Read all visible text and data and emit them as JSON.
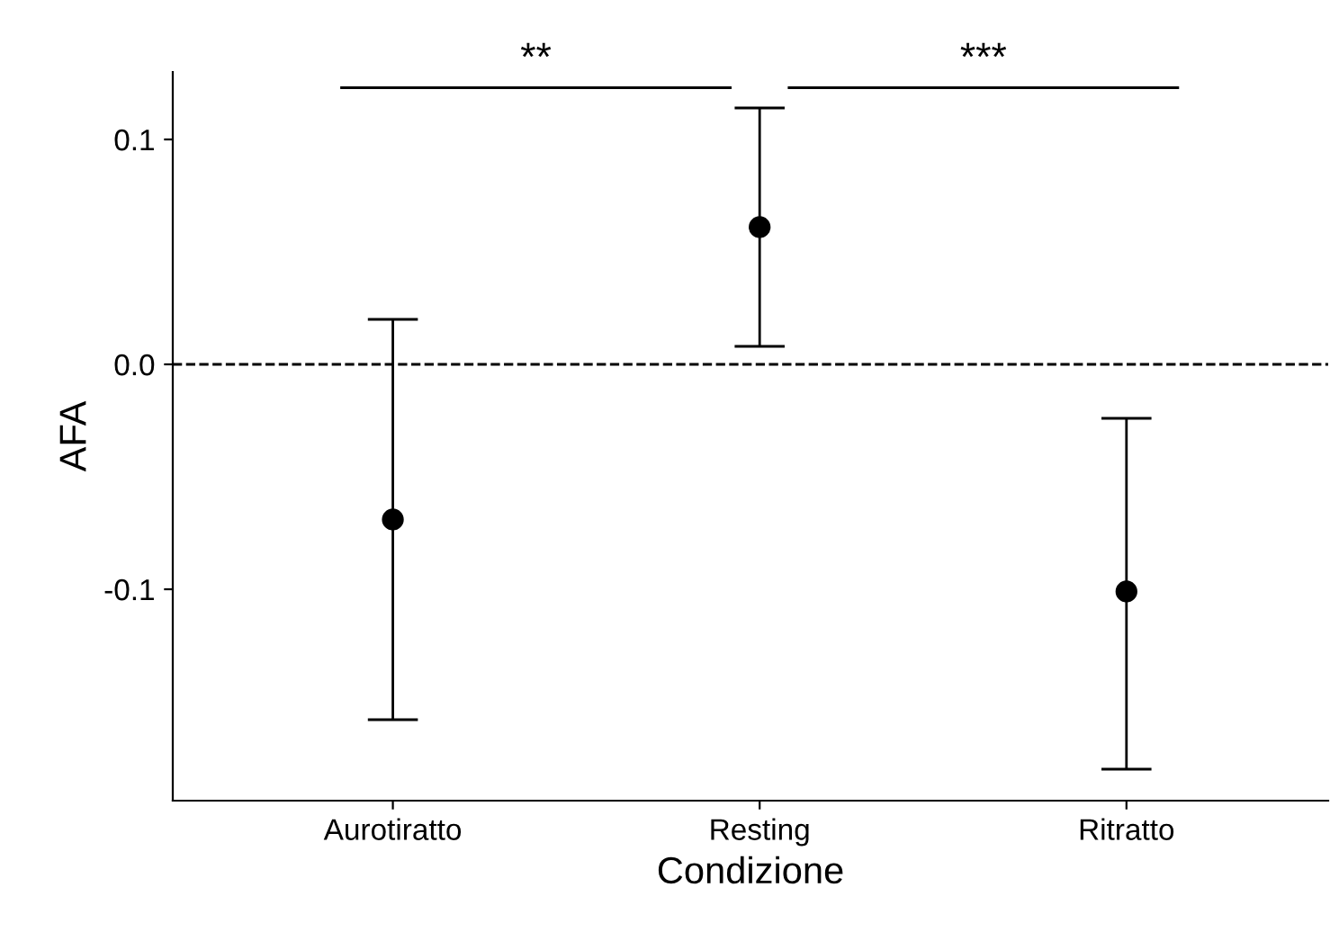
{
  "chart_data": {
    "type": "scatter",
    "xlabel": "Condizione",
    "ylabel": "AFA",
    "categories": [
      "Aurotiratto",
      "Resting",
      "Ritratto"
    ],
    "series": [
      {
        "color": "#000000",
        "values": [
          -0.069,
          0.061,
          -0.101
        ],
        "errors": [
          [
            -0.158,
            0.02
          ],
          [
            0.008,
            0.114
          ],
          [
            -0.18,
            -0.024
          ]
        ]
      }
    ],
    "ylim": [
      -0.194,
      0.13
    ],
    "yticks": [
      {
        "value": -0.1,
        "label": "-0.1"
      },
      {
        "value": 0.0,
        "label": "0.0"
      },
      {
        "value": 0.1,
        "label": "0.1"
      }
    ],
    "ref_lines": [
      {
        "axis": "y",
        "value": 0,
        "line_style": "dashed",
        "color": "#000000"
      }
    ],
    "annotations": [
      "**",
      "***"
    ],
    "marker": "circle",
    "grid": false,
    "legend": false
  }
}
